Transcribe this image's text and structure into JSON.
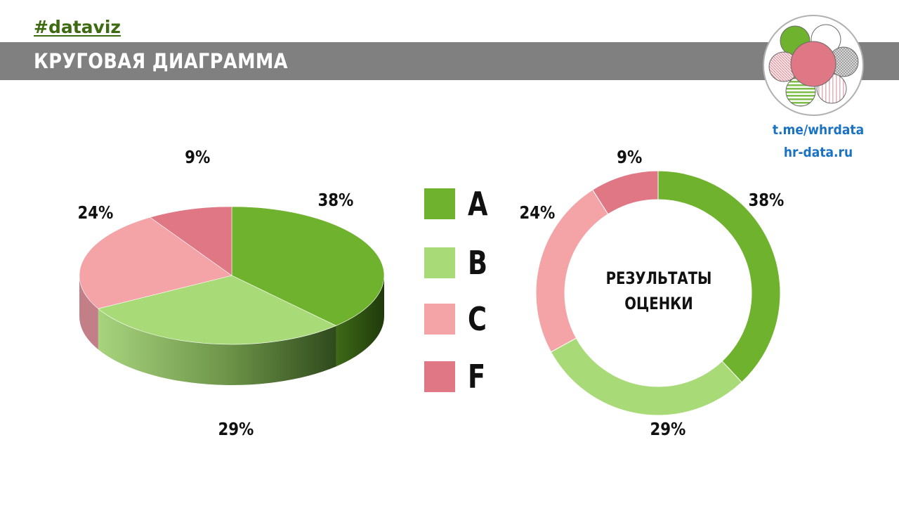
{
  "header": {
    "hashtag": "#dataviz",
    "title": "КРУГОВАЯ ДИАГРАММА"
  },
  "links": [
    "t.me/whrdata",
    "hr-data.ru"
  ],
  "logo": {
    "icon": "flower-circles-logo-icon",
    "colors": [
      "#6fb22e",
      "#e07785",
      "#ffffff",
      "#bdbdbd",
      "#f2c7cd"
    ]
  },
  "legend": [
    {
      "label": "A",
      "color": "#6fb22e"
    },
    {
      "label": "B",
      "color": "#a8db78"
    },
    {
      "label": "C",
      "color": "#f4a3a6"
    },
    {
      "label": "F",
      "color": "#e07785"
    }
  ],
  "donut": {
    "center_line1": "РЕЗУЛЬТАТЫ",
    "center_line2": "ОЦЕНКИ"
  },
  "chart_data": [
    {
      "type": "pie",
      "style": "3d",
      "categories": [
        "A",
        "B",
        "C",
        "F"
      ],
      "values": [
        38,
        29,
        24,
        9
      ],
      "labels": [
        "38%",
        "29%",
        "24%",
        "9%"
      ],
      "colors": [
        "#6fb22e",
        "#a8db78",
        "#f4a3a6",
        "#e07785"
      ]
    },
    {
      "type": "pie",
      "style": "donut",
      "categories": [
        "A",
        "B",
        "C",
        "F"
      ],
      "values": [
        38,
        29,
        24,
        9
      ],
      "labels": [
        "38%",
        "29%",
        "24%",
        "9%"
      ],
      "colors": [
        "#6fb22e",
        "#a8db78",
        "#f4a3a6",
        "#e07785"
      ]
    }
  ]
}
